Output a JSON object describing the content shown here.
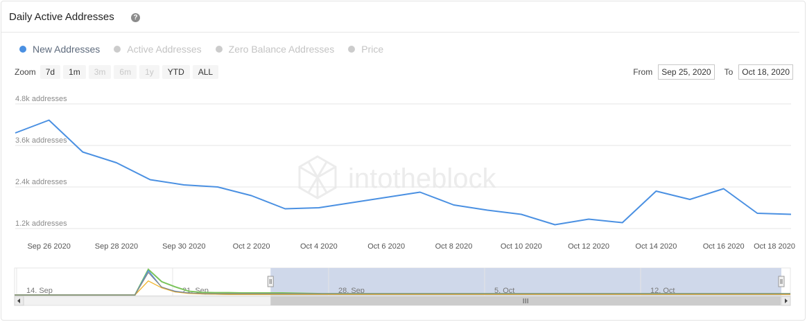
{
  "header": {
    "title": "Daily Active Addresses",
    "help_icon": "question-circle-icon"
  },
  "legend": [
    {
      "label": "New Addresses",
      "color": "#4a90e2",
      "active": true
    },
    {
      "label": "Active Addresses",
      "color": "#cccccc",
      "active": false
    },
    {
      "label": "Zero Balance Addresses",
      "color": "#cccccc",
      "active": false
    },
    {
      "label": "Price",
      "color": "#cccccc",
      "active": false
    }
  ],
  "zoom": {
    "label": "Zoom",
    "buttons": [
      {
        "label": "7d",
        "enabled": true
      },
      {
        "label": "1m",
        "enabled": true
      },
      {
        "label": "3m",
        "enabled": false
      },
      {
        "label": "6m",
        "enabled": false
      },
      {
        "label": "1y",
        "enabled": false
      },
      {
        "label": "YTD",
        "enabled": true
      },
      {
        "label": "ALL",
        "enabled": true
      }
    ]
  },
  "range": {
    "from_label": "From",
    "from_value": "Sep 25, 2020",
    "to_label": "To",
    "to_value": "Oct 18, 2020"
  },
  "watermark": "intotheblock",
  "navigator": {
    "labels": [
      "14. Sep",
      "21. Sep",
      "28. Sep",
      "5. Oct",
      "12. Oct"
    ],
    "series": [
      {
        "color": "#7ac35a",
        "values": [
          0,
          0,
          0,
          0,
          0,
          0,
          0,
          0,
          0,
          0,
          1,
          0.52,
          0.32,
          0.15,
          0.1,
          0.09,
          0.09,
          0.08,
          0.08,
          0.08,
          0.08,
          0.07,
          0.06,
          0.05,
          0.05,
          0.05,
          0.05,
          0.05,
          0.05,
          0.05,
          0.05,
          0.05,
          0.05,
          0.05,
          0.05,
          0.05,
          0.05,
          0.05,
          0.05,
          0.05,
          0.05,
          0.05,
          0.05,
          0.05,
          0.05,
          0.05,
          0.05,
          0.05,
          0.05,
          0.05,
          0.05,
          0.05,
          0.05,
          0.05,
          0.05,
          0.05,
          0.05,
          0.05,
          0.05
        ]
      },
      {
        "color": "#4a90e2",
        "values": [
          0,
          0,
          0,
          0,
          0,
          0,
          0,
          0,
          0,
          0,
          0.95,
          0.3,
          0.15,
          0.08,
          0.04,
          0.03,
          0.02,
          0.02,
          0.02,
          0.02,
          0.02,
          0.02,
          0.02,
          0.02,
          0.02,
          0.02,
          0.02,
          0.02,
          0.02,
          0.02,
          0.02,
          0.02,
          0.02,
          0.02,
          0.02,
          0.02,
          0.02,
          0.02,
          0.02,
          0.02,
          0.02,
          0.02,
          0.02,
          0.02,
          0.02,
          0.02,
          0.02,
          0.02,
          0.02,
          0.02,
          0.02,
          0.02,
          0.02,
          0.02,
          0.02,
          0.02,
          0.02,
          0.02,
          0.02
        ]
      },
      {
        "color": "#f0b429",
        "values": [
          0,
          0,
          0,
          0,
          0,
          0,
          0,
          0,
          0,
          0,
          0.55,
          0.28,
          0.12,
          0.06,
          0.04,
          0.03,
          0.02,
          0.02,
          0.02,
          0.02,
          0.02,
          0.02,
          0.02,
          0.02,
          0.02,
          0.02,
          0.02,
          0.02,
          0.02,
          0.02,
          0.02,
          0.02,
          0.02,
          0.02,
          0.02,
          0.02,
          0.02,
          0.02,
          0.02,
          0.02,
          0.02,
          0.02,
          0.02,
          0.02,
          0.02,
          0.02,
          0.02,
          0.02,
          0.02,
          0.02,
          0.02,
          0.02,
          0.02,
          0.02,
          0.02,
          0.02,
          0.02,
          0.02,
          0.02
        ]
      },
      {
        "color": "#888888",
        "values": [
          0,
          0,
          0,
          0,
          0,
          0,
          0,
          0,
          0,
          0,
          0.88,
          0.31,
          0.14,
          0.08,
          0.06,
          0.05,
          0.05,
          0.05,
          0.05,
          0.05,
          0.05,
          0.05,
          0.05,
          0.05,
          0.05,
          0.05,
          0.05,
          0.05,
          0.05,
          0.05,
          0.05,
          0.05,
          0.05,
          0.05,
          0.05,
          0.05,
          0.05,
          0.05,
          0.05,
          0.05,
          0.05,
          0.05,
          0.05,
          0.05,
          0.05,
          0.05,
          0.05,
          0.05,
          0.05,
          0.05,
          0.05,
          0.05,
          0.05,
          0.05,
          0.05,
          0.05,
          0.05,
          0.05,
          0.05
        ]
      }
    ],
    "selection": {
      "from_fraction": 0.33,
      "to_fraction": 1.0
    }
  },
  "chart_data": {
    "type": "line",
    "title": "Daily Active Addresses",
    "x": [
      "2020-09-25",
      "2020-09-26",
      "2020-09-27",
      "2020-09-28",
      "2020-09-29",
      "2020-09-30",
      "2020-10-01",
      "2020-10-02",
      "2020-10-03",
      "2020-10-04",
      "2020-10-05",
      "2020-10-06",
      "2020-10-07",
      "2020-10-08",
      "2020-10-09",
      "2020-10-10",
      "2020-10-11",
      "2020-10-12",
      "2020-10-13",
      "2020-10-14",
      "2020-10-15",
      "2020-10-16",
      "2020-10-17",
      "2020-10-18"
    ],
    "x_tick_labels": [
      "Sep 26 2020",
      "Sep 28 2020",
      "Sep 30 2020",
      "Oct 2 2020",
      "Oct 4 2020",
      "Oct 6 2020",
      "Oct 8 2020",
      "Oct 10 2020",
      "Oct 12 2020",
      "Oct 14 2020",
      "Oct 16 2020",
      "Oct 18 2020"
    ],
    "y_ticks": [
      1200,
      2400,
      3600,
      4800
    ],
    "y_tick_labels": [
      "1.2k addresses",
      "2.4k addresses",
      "3.6k addresses",
      "4.8k addresses"
    ],
    "ylim": [
      1000,
      4800
    ],
    "grid": true,
    "series": [
      {
        "name": "New Addresses",
        "color": "#4a90e2",
        "values": [
          3960,
          4330,
          3410,
          3100,
          2610,
          2460,
          2400,
          2150,
          1770,
          1800,
          1950,
          2100,
          2250,
          1880,
          1730,
          1610,
          1310,
          1470,
          1370,
          2280,
          2040,
          2350,
          1640,
          1610
        ]
      }
    ]
  }
}
